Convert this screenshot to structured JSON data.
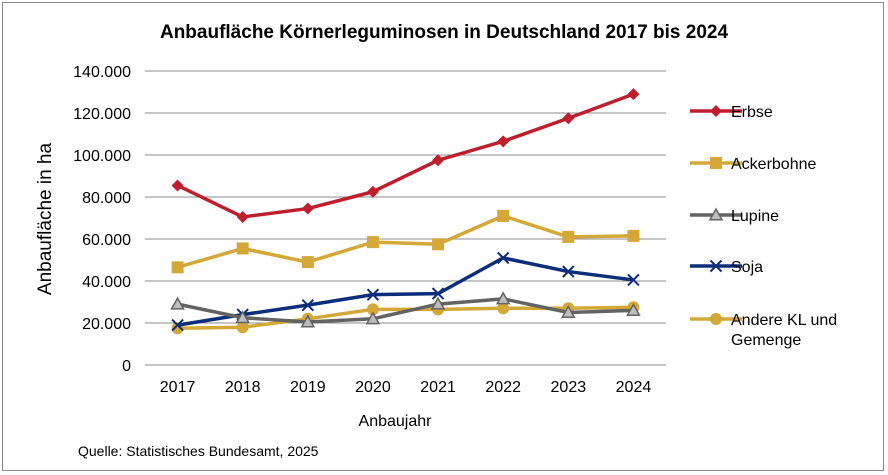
{
  "chart_data": {
    "type": "line",
    "title": "Anbaufläche Körnerleguminosen in Deutschland 2017 bis 2024",
    "xlabel": "Anbaujahr",
    "ylabel": "Anbaufläche in ha",
    "ylim": [
      0,
      140000
    ],
    "yticks": [
      0,
      20000,
      40000,
      60000,
      80000,
      100000,
      120000,
      140000
    ],
    "ytick_labels": [
      "0",
      "20.000",
      "40.000",
      "60.000",
      "80.000",
      "100.000",
      "120.000",
      "140.000"
    ],
    "grid": true,
    "legend_position": "right",
    "categories": [
      "2017",
      "2018",
      "2019",
      "2020",
      "2021",
      "2022",
      "2023",
      "2024"
    ],
    "series": [
      {
        "name": "Erbse",
        "color": "#be1e2d",
        "marker": "diamond",
        "values": [
          85500,
          70500,
          74500,
          82500,
          97500,
          106500,
          117500,
          129000
        ]
      },
      {
        "name": "Ackerbohne",
        "color": "#d4a838",
        "marker": "square",
        "values": [
          46500,
          55500,
          49000,
          58500,
          57500,
          71000,
          61000,
          61500
        ]
      },
      {
        "name": "Lupine",
        "color": "#636363",
        "marker": "triangle",
        "values": [
          29000,
          22500,
          20500,
          22000,
          29000,
          31500,
          25000,
          26000
        ]
      },
      {
        "name": "Soja",
        "color": "#0c2e7a",
        "marker": "x",
        "values": [
          19000,
          24000,
          28500,
          33500,
          34000,
          51000,
          44500,
          40500
        ]
      },
      {
        "name": "Andere KL und Gemenge",
        "name_lines": [
          "Andere KL und",
          "Gemenge"
        ],
        "color": "#d4a838",
        "marker": "circle",
        "values": [
          17500,
          18000,
          22000,
          26500,
          26500,
          27000,
          27000,
          27500
        ]
      }
    ]
  },
  "source": "Quelle: Statistisches Bundesamt, 2025"
}
